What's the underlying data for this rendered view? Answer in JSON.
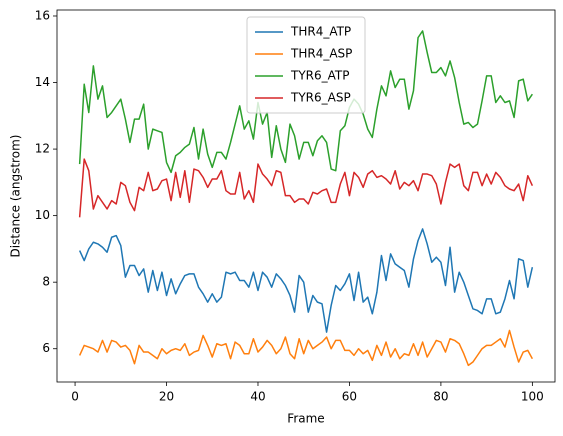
{
  "chart_data": {
    "type": "line",
    "xlabel": "Frame",
    "ylabel": "Distance (angstrom)",
    "x": [
      1,
      2,
      3,
      4,
      5,
      6,
      7,
      8,
      9,
      10,
      11,
      12,
      13,
      14,
      15,
      16,
      17,
      18,
      19,
      20,
      21,
      22,
      23,
      24,
      25,
      26,
      27,
      28,
      29,
      30,
      31,
      32,
      33,
      34,
      35,
      36,
      37,
      38,
      39,
      40,
      41,
      42,
      43,
      44,
      45,
      46,
      47,
      48,
      49,
      50,
      51,
      52,
      53,
      54,
      55,
      56,
      57,
      58,
      59,
      60,
      61,
      62,
      63,
      64,
      65,
      66,
      67,
      68,
      69,
      70,
      71,
      72,
      73,
      74,
      75,
      76,
      77,
      78,
      79,
      80,
      81,
      82,
      83,
      84,
      85,
      86,
      87,
      88,
      89,
      90,
      91,
      92,
      93,
      94,
      95,
      96,
      97,
      98,
      99,
      100
    ],
    "series": [
      {
        "name": "THR4_ATP",
        "color": "#1f77b4",
        "values": [
          8.95,
          8.65,
          9.0,
          9.2,
          9.15,
          9.05,
          8.9,
          9.35,
          9.4,
          9.1,
          8.15,
          8.5,
          8.5,
          8.2,
          8.4,
          7.7,
          8.35,
          7.75,
          8.3,
          7.6,
          8.1,
          7.65,
          7.95,
          8.2,
          8.25,
          8.25,
          7.85,
          7.65,
          7.4,
          7.65,
          7.4,
          7.55,
          8.3,
          8.25,
          8.3,
          8.05,
          8.05,
          7.85,
          8.3,
          7.75,
          8.3,
          8.15,
          7.85,
          8.25,
          8.1,
          7.9,
          7.6,
          7.1,
          8.2,
          8.0,
          7.1,
          7.6,
          7.4,
          7.35,
          6.5,
          7.3,
          7.9,
          7.75,
          7.95,
          8.25,
          7.45,
          8.3,
          7.4,
          7.55,
          7.05,
          7.7,
          8.8,
          8.05,
          8.85,
          8.55,
          8.45,
          8.35,
          7.85,
          8.7,
          9.25,
          9.6,
          9.15,
          8.6,
          8.75,
          8.6,
          7.9,
          9.05,
          7.7,
          8.3,
          8.0,
          7.6,
          7.2,
          7.15,
          7.05,
          7.5,
          7.5,
          7.05,
          7.1,
          7.5,
          8.05,
          7.5,
          8.7,
          8.65,
          7.85,
          8.45
        ]
      },
      {
        "name": "THR4_ASP",
        "color": "#ff7f0e",
        "values": [
          5.8,
          6.1,
          6.05,
          6.0,
          5.9,
          6.25,
          5.9,
          6.25,
          6.2,
          6.05,
          6.1,
          5.95,
          5.55,
          6.1,
          5.9,
          5.9,
          5.8,
          5.7,
          6.0,
          5.85,
          5.95,
          6.0,
          5.95,
          6.15,
          5.8,
          5.9,
          5.95,
          6.4,
          6.1,
          5.75,
          6.15,
          6.1,
          6.15,
          5.7,
          6.2,
          6.1,
          5.85,
          5.85,
          6.3,
          5.9,
          6.05,
          6.25,
          6.1,
          5.85,
          6.0,
          6.35,
          5.85,
          5.7,
          6.3,
          5.85,
          6.25,
          6.0,
          6.1,
          6.2,
          6.35,
          6.0,
          6.25,
          6.25,
          5.95,
          5.95,
          5.8,
          6.0,
          5.85,
          5.95,
          5.65,
          6.1,
          5.8,
          6.2,
          5.75,
          6.0,
          5.7,
          5.85,
          5.8,
          6.15,
          5.8,
          6.2,
          5.75,
          6.0,
          6.25,
          6.2,
          5.9,
          6.3,
          6.25,
          6.15,
          5.85,
          5.5,
          5.6,
          5.8,
          6.0,
          6.1,
          6.1,
          6.2,
          6.3,
          6.05,
          6.55,
          6.05,
          5.6,
          5.9,
          5.95,
          5.7
        ]
      },
      {
        "name": "TYR6_ATP",
        "color": "#2ca02c",
        "values": [
          11.55,
          13.95,
          13.1,
          14.5,
          13.5,
          13.9,
          12.95,
          13.1,
          13.3,
          13.5,
          12.9,
          12.2,
          12.9,
          12.9,
          13.35,
          12.0,
          12.6,
          12.55,
          12.5,
          11.6,
          11.3,
          11.8,
          11.9,
          12.05,
          12.15,
          12.65,
          11.7,
          12.6,
          11.85,
          11.45,
          11.9,
          11.9,
          11.7,
          12.2,
          12.75,
          13.3,
          12.6,
          12.85,
          12.3,
          13.4,
          12.75,
          13.1,
          11.75,
          12.7,
          12.0,
          11.6,
          12.75,
          12.4,
          11.7,
          12.2,
          12.2,
          11.8,
          12.25,
          12.4,
          12.2,
          11.4,
          11.35,
          12.55,
          12.7,
          13.25,
          13.5,
          13.35,
          13.05,
          12.6,
          12.35,
          13.2,
          13.9,
          13.6,
          14.35,
          13.85,
          14.1,
          14.1,
          13.2,
          13.75,
          15.35,
          15.55,
          14.9,
          14.3,
          14.3,
          14.45,
          14.2,
          14.65,
          14.15,
          13.4,
          12.75,
          12.8,
          12.65,
          12.75,
          13.45,
          14.2,
          14.2,
          13.4,
          13.6,
          13.4,
          13.45,
          12.95,
          14.05,
          14.1,
          13.45,
          13.65
        ]
      },
      {
        "name": "TYR6_ASP",
        "color": "#d62728",
        "values": [
          9.95,
          11.7,
          11.35,
          10.2,
          10.6,
          10.4,
          10.2,
          10.45,
          10.35,
          11.0,
          10.9,
          10.4,
          10.15,
          10.85,
          10.75,
          11.3,
          10.75,
          10.8,
          11.05,
          11.1,
          10.45,
          11.3,
          10.55,
          11.35,
          10.4,
          11.4,
          11.35,
          11.15,
          10.85,
          11.1,
          11.1,
          11.35,
          10.75,
          10.65,
          10.65,
          11.3,
          10.5,
          10.75,
          10.4,
          11.55,
          11.25,
          11.1,
          10.9,
          11.35,
          11.3,
          10.6,
          10.6,
          10.4,
          10.5,
          10.5,
          10.35,
          10.7,
          10.65,
          10.75,
          10.8,
          10.4,
          10.4,
          10.95,
          11.3,
          10.6,
          11.3,
          11.15,
          10.85,
          11.25,
          11.35,
          11.15,
          11.2,
          11.1,
          10.95,
          11.35,
          10.8,
          11.0,
          10.9,
          11.05,
          10.75,
          11.25,
          11.25,
          11.2,
          10.95,
          10.35,
          11.0,
          11.55,
          11.45,
          11.55,
          10.9,
          10.75,
          11.3,
          11.3,
          10.9,
          11.25,
          10.95,
          11.3,
          11.15,
          10.9,
          10.8,
          10.75,
          10.95,
          10.45,
          11.2,
          10.9
        ]
      }
    ],
    "xlim": [
      -3.95,
      104.95
    ],
    "xticks": [
      0,
      20,
      40,
      60,
      80,
      100
    ],
    "ylim": [
      5.0,
      16.18
    ],
    "yticks": [
      6,
      8,
      10,
      12,
      14,
      16
    ],
    "grid": false,
    "legend": "upper center"
  }
}
